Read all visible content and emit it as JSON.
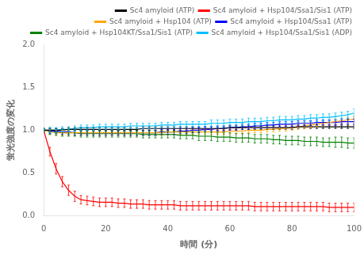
{
  "chart_data": {
    "type": "line",
    "xlabel": "時間 (分)",
    "ylabel": "蛍光強度の変化",
    "xlim": [
      0,
      100
    ],
    "ylim": [
      0.0,
      2.0
    ],
    "xticks": [
      0,
      20,
      40,
      60,
      80,
      100
    ],
    "yticks": [
      {
        "value": 0.0,
        "label": "0.0"
      },
      0.5,
      {
        "value": 1.0,
        "label": "1.0"
      },
      1.5,
      {
        "value": 2.0,
        "label": "2.0"
      }
    ],
    "grid": false,
    "legend": "upper right",
    "x": [
      0,
      2,
      4,
      6,
      8,
      10,
      12,
      14,
      16,
      18,
      20,
      22,
      24,
      26,
      28,
      30,
      32,
      34,
      36,
      38,
      40,
      42,
      44,
      46,
      48,
      50,
      52,
      54,
      56,
      58,
      60,
      62,
      64,
      66,
      68,
      70,
      72,
      74,
      76,
      78,
      80,
      82,
      84,
      86,
      88,
      90,
      92,
      94,
      96,
      98,
      100
    ],
    "series": [
      {
        "name": "Sc4 amyloid (ATP)",
        "color": "#000000",
        "values": [
          1.0,
          1.0,
          1.0,
          1.0,
          1.01,
          1.01,
          1.01,
          1.01,
          1.01,
          1.01,
          1.01,
          1.01,
          1.01,
          1.01,
          1.01,
          1.01,
          1.02,
          1.02,
          1.02,
          1.02,
          1.02,
          1.02,
          1.02,
          1.02,
          1.02,
          1.02,
          1.02,
          1.02,
          1.02,
          1.02,
          1.03,
          1.03,
          1.03,
          1.03,
          1.03,
          1.03,
          1.03,
          1.03,
          1.03,
          1.03,
          1.03,
          1.04,
          1.04,
          1.04,
          1.04,
          1.04,
          1.04,
          1.04,
          1.04,
          1.04,
          1.04
        ],
        "yerr": [
          0.02,
          0.02,
          0.02,
          0.02,
          0.02,
          0.02,
          0.02,
          0.02,
          0.02,
          0.02,
          0.02,
          0.02,
          0.02,
          0.02,
          0.02,
          0.02,
          0.02,
          0.02,
          0.02,
          0.02,
          0.02,
          0.02,
          0.02,
          0.02,
          0.02,
          0.02,
          0.02,
          0.02,
          0.02,
          0.02,
          0.02,
          0.02,
          0.02,
          0.02,
          0.02,
          0.02,
          0.02,
          0.02,
          0.02,
          0.02,
          0.02,
          0.02,
          0.02,
          0.02,
          0.02,
          0.02,
          0.02,
          0.02,
          0.02,
          0.02,
          0.02
        ]
      },
      {
        "name": "Sc4 amyloid + Hsp104/Ssa1/Sis1 (ATP)",
        "color": "#ff0000",
        "values": [
          1.0,
          0.75,
          0.55,
          0.4,
          0.3,
          0.23,
          0.19,
          0.18,
          0.17,
          0.16,
          0.16,
          0.16,
          0.15,
          0.15,
          0.14,
          0.14,
          0.14,
          0.13,
          0.13,
          0.13,
          0.13,
          0.13,
          0.12,
          0.12,
          0.12,
          0.12,
          0.12,
          0.12,
          0.12,
          0.12,
          0.12,
          0.12,
          0.12,
          0.12,
          0.11,
          0.11,
          0.11,
          0.11,
          0.11,
          0.11,
          0.11,
          0.11,
          0.11,
          0.11,
          0.11,
          0.11,
          0.1,
          0.1,
          0.1,
          0.1,
          0.1
        ],
        "yerr": [
          0.02,
          0.05,
          0.06,
          0.06,
          0.06,
          0.06,
          0.05,
          0.05,
          0.05,
          0.05,
          0.05,
          0.05,
          0.05,
          0.05,
          0.05,
          0.05,
          0.05,
          0.05,
          0.05,
          0.05,
          0.05,
          0.05,
          0.05,
          0.05,
          0.05,
          0.05,
          0.05,
          0.05,
          0.05,
          0.05,
          0.05,
          0.05,
          0.05,
          0.05,
          0.05,
          0.05,
          0.05,
          0.05,
          0.05,
          0.05,
          0.05,
          0.05,
          0.05,
          0.05,
          0.05,
          0.05,
          0.05,
          0.05,
          0.05,
          0.05,
          0.05
        ]
      },
      {
        "name": "Sc4 amyloid + Hsp104 (ATP)",
        "color": "#ffa500",
        "values": [
          1.0,
          0.98,
          0.97,
          0.97,
          0.97,
          0.97,
          0.97,
          0.97,
          0.97,
          0.97,
          0.97,
          0.97,
          0.97,
          0.97,
          0.97,
          0.97,
          0.97,
          0.97,
          0.97,
          0.97,
          0.98,
          0.98,
          0.98,
          0.98,
          0.98,
          0.98,
          0.98,
          0.98,
          0.98,
          0.98,
          0.99,
          0.99,
          0.99,
          1.0,
          1.0,
          1.0,
          1.01,
          1.01,
          1.02,
          1.02,
          1.03,
          1.04,
          1.05,
          1.06,
          1.07,
          1.08,
          1.09,
          1.1,
          1.11,
          1.12,
          1.13
        ],
        "yerr": [
          0.02,
          0.03,
          0.03,
          0.03,
          0.03,
          0.03,
          0.03,
          0.03,
          0.03,
          0.03,
          0.03,
          0.03,
          0.03,
          0.03,
          0.03,
          0.03,
          0.03,
          0.03,
          0.03,
          0.03,
          0.03,
          0.03,
          0.03,
          0.03,
          0.03,
          0.03,
          0.03,
          0.03,
          0.03,
          0.03,
          0.03,
          0.03,
          0.03,
          0.03,
          0.03,
          0.03,
          0.03,
          0.03,
          0.03,
          0.03,
          0.03,
          0.03,
          0.03,
          0.03,
          0.03,
          0.03,
          0.03,
          0.03,
          0.03,
          0.03,
          0.04
        ]
      },
      {
        "name": "Sc4 amyloid + Hsp104/Ssa1 (ATP)",
        "color": "#0000ff",
        "values": [
          1.0,
          0.99,
          0.99,
          0.98,
          0.98,
          0.97,
          0.97,
          0.97,
          0.97,
          0.97,
          0.97,
          0.97,
          0.97,
          0.97,
          0.97,
          0.97,
          0.97,
          0.97,
          0.97,
          0.98,
          0.98,
          0.98,
          0.99,
          0.99,
          1.0,
          1.0,
          1.01,
          1.01,
          1.02,
          1.02,
          1.03,
          1.03,
          1.04,
          1.04,
          1.05,
          1.05,
          1.06,
          1.06,
          1.07,
          1.07,
          1.07,
          1.08,
          1.08,
          1.08,
          1.09,
          1.09,
          1.09,
          1.09,
          1.1,
          1.1,
          1.1
        ],
        "yerr": [
          0.02,
          0.03,
          0.03,
          0.03,
          0.03,
          0.03,
          0.03,
          0.03,
          0.03,
          0.03,
          0.03,
          0.03,
          0.03,
          0.03,
          0.03,
          0.03,
          0.03,
          0.03,
          0.03,
          0.03,
          0.03,
          0.03,
          0.03,
          0.03,
          0.03,
          0.03,
          0.03,
          0.03,
          0.03,
          0.03,
          0.03,
          0.03,
          0.03,
          0.03,
          0.03,
          0.03,
          0.03,
          0.03,
          0.03,
          0.03,
          0.03,
          0.03,
          0.03,
          0.03,
          0.03,
          0.03,
          0.03,
          0.03,
          0.03,
          0.03,
          0.03
        ]
      },
      {
        "name": "Sc4 amyloid + Hsp104KT/Ssa1/Sis1 (ATP)",
        "color": "#008000",
        "values": [
          1.0,
          0.99,
          0.98,
          0.97,
          0.97,
          0.97,
          0.96,
          0.96,
          0.96,
          0.96,
          0.96,
          0.96,
          0.96,
          0.96,
          0.96,
          0.96,
          0.95,
          0.95,
          0.95,
          0.95,
          0.95,
          0.95,
          0.94,
          0.94,
          0.94,
          0.93,
          0.93,
          0.93,
          0.92,
          0.92,
          0.92,
          0.91,
          0.91,
          0.91,
          0.9,
          0.9,
          0.9,
          0.89,
          0.89,
          0.88,
          0.88,
          0.88,
          0.87,
          0.87,
          0.87,
          0.86,
          0.86,
          0.86,
          0.86,
          0.85,
          0.85
        ],
        "yerr": [
          0.02,
          0.04,
          0.04,
          0.04,
          0.04,
          0.04,
          0.04,
          0.04,
          0.04,
          0.04,
          0.04,
          0.04,
          0.04,
          0.04,
          0.04,
          0.04,
          0.04,
          0.04,
          0.04,
          0.04,
          0.04,
          0.04,
          0.04,
          0.04,
          0.04,
          0.05,
          0.05,
          0.05,
          0.05,
          0.05,
          0.05,
          0.05,
          0.05,
          0.05,
          0.05,
          0.05,
          0.05,
          0.05,
          0.05,
          0.05,
          0.05,
          0.05,
          0.05,
          0.05,
          0.05,
          0.05,
          0.05,
          0.06,
          0.06,
          0.06,
          0.06
        ]
      },
      {
        "name": "Sc4 amyloid + Hsp104/Ssa1/Sis1 (ADP)",
        "color": "#00bfff",
        "values": [
          1.0,
          1.0,
          1.0,
          1.01,
          1.01,
          1.02,
          1.03,
          1.03,
          1.03,
          1.04,
          1.04,
          1.04,
          1.04,
          1.04,
          1.05,
          1.05,
          1.05,
          1.05,
          1.05,
          1.06,
          1.06,
          1.06,
          1.07,
          1.07,
          1.07,
          1.07,
          1.07,
          1.08,
          1.08,
          1.08,
          1.09,
          1.09,
          1.09,
          1.1,
          1.1,
          1.1,
          1.11,
          1.11,
          1.12,
          1.12,
          1.12,
          1.13,
          1.13,
          1.14,
          1.14,
          1.15,
          1.15,
          1.16,
          1.17,
          1.18,
          1.2
        ],
        "yerr": [
          0.02,
          0.03,
          0.03,
          0.03,
          0.03,
          0.03,
          0.03,
          0.03,
          0.03,
          0.03,
          0.03,
          0.03,
          0.03,
          0.03,
          0.03,
          0.03,
          0.03,
          0.03,
          0.03,
          0.03,
          0.03,
          0.03,
          0.03,
          0.03,
          0.03,
          0.03,
          0.03,
          0.04,
          0.04,
          0.04,
          0.04,
          0.04,
          0.04,
          0.04,
          0.04,
          0.04,
          0.04,
          0.04,
          0.04,
          0.04,
          0.04,
          0.04,
          0.04,
          0.04,
          0.04,
          0.04,
          0.04,
          0.04,
          0.04,
          0.04,
          0.05
        ]
      }
    ]
  }
}
